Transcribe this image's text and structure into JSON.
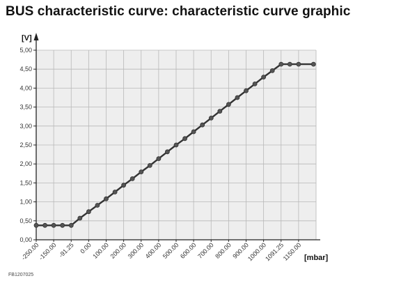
{
  "title": "BUS characteristic curve: characteristic curve graphic",
  "figure_code": "FB1207025",
  "chart_data": {
    "type": "line",
    "ylabel": "[V]",
    "xlabel": "[mbar]",
    "ylim": [
      0,
      5
    ],
    "yticks": [
      "0,00",
      "0,50",
      "1,00",
      "1,50",
      "2,00",
      "2,50",
      "3,00",
      "3,50",
      "4,00",
      "4,50",
      "5,00"
    ],
    "xticks": [
      "-250.00",
      "-150.00",
      "-91.25",
      "0.00",
      "100.00",
      "200.00",
      "300.00",
      "400.00",
      "500.00",
      "600.00",
      "700.00",
      "800.00",
      "900.00",
      "1000.00",
      "1091.25",
      "1150.00"
    ],
    "grid": true,
    "series": [
      {
        "x": [
          -250,
          -200,
          -150,
          -120.6,
          -91.25,
          -45.6,
          0,
          50,
          100,
          150,
          200,
          250,
          300,
          350,
          400,
          450,
          500,
          550,
          600,
          650,
          700,
          750,
          800,
          850,
          900,
          950,
          1000,
          1045.6,
          1091.25,
          1120.6,
          1150,
          1200
        ],
        "y": [
          0.38,
          0.38,
          0.38,
          0.38,
          0.38,
          0.57,
          0.74,
          0.91,
          1.08,
          1.26,
          1.44,
          1.61,
          1.79,
          1.96,
          2.14,
          2.32,
          2.5,
          2.67,
          2.85,
          3.03,
          3.21,
          3.39,
          3.57,
          3.75,
          3.93,
          4.11,
          4.29,
          4.46,
          4.63,
          4.63,
          4.63,
          4.63
        ]
      }
    ]
  }
}
